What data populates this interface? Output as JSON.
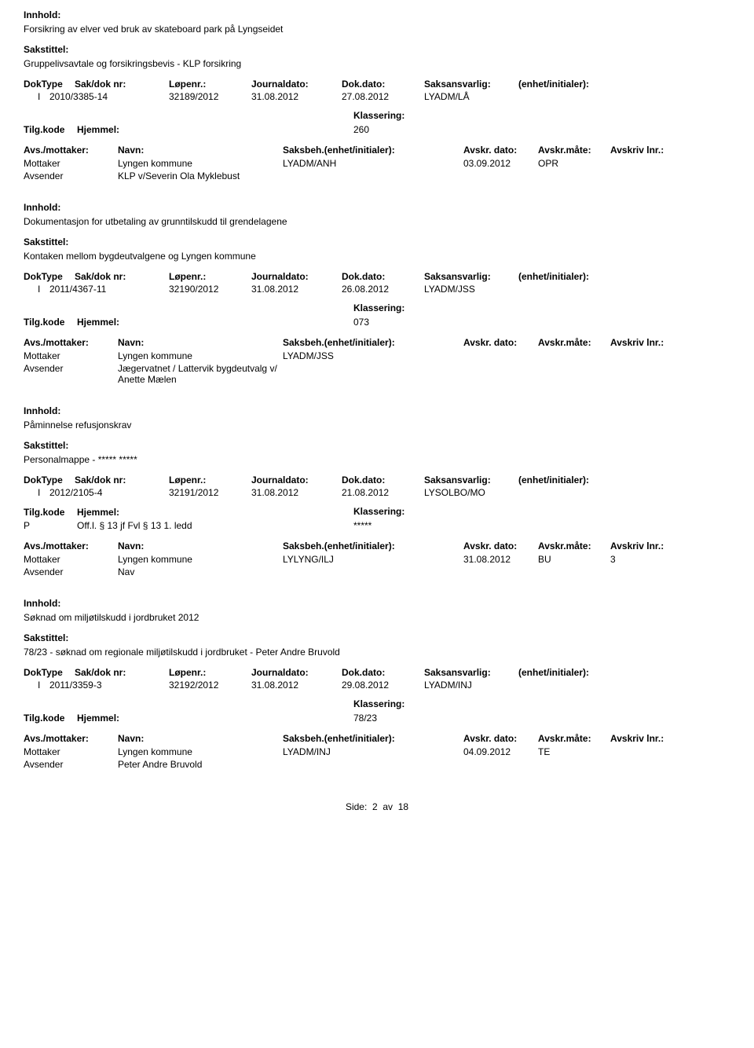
{
  "labels": {
    "innhold": "Innhold:",
    "sakstittel": "Sakstittel:",
    "doktype": "DokType",
    "sakdok": "Sak/dok nr:",
    "lopenr": "Løpenr.:",
    "journaldato": "Journaldato:",
    "dokdato": "Dok.dato:",
    "saksansvarlig": "Saksansvarlig:",
    "enhet": "(enhet/initialer):",
    "tilgkode": "Tilg.kode",
    "hjemmel": "Hjemmel:",
    "klassering": "Klassering:",
    "avsmottaker": "Avs./mottaker:",
    "navn": "Navn:",
    "saksbeh": "Saksbeh.(enhet/initialer):",
    "avskrdato": "Avskr. dato:",
    "avskrmate": "Avskr.måte:",
    "avskrivlnr": "Avskriv lnr.:"
  },
  "records": [
    {
      "innhold": "Forsikring av elver ved bruk av skateboard park på Lyngseidet",
      "sakstittel": "Gruppelivsavtale og forsikringsbevis - KLP forsikring",
      "doktype": "I",
      "sakdok": "2010/3385-14",
      "lopenr": "32189/2012",
      "jdato": "31.08.2012",
      "ddato": "27.08.2012",
      "saksa": "LYADM/LÅ",
      "tilg": "",
      "hjemmel": "",
      "klassering": "260",
      "parties": [
        {
          "role": "Mottaker",
          "navn": "Lyngen kommune",
          "saksb": "LYADM/ANH",
          "adato": "03.09.2012",
          "amate": "OPR",
          "lnr": ""
        },
        {
          "role": "Avsender",
          "navn": "KLP v/Severin Ola Myklebust",
          "saksb": "",
          "adato": "",
          "amate": "",
          "lnr": ""
        }
      ]
    },
    {
      "innhold": "Dokumentasjon for utbetaling av grunntilskudd til grendelagene",
      "sakstittel": "Kontaken mellom bygdeutvalgene og Lyngen kommune",
      "doktype": "I",
      "sakdok": "2011/4367-11",
      "lopenr": "32190/2012",
      "jdato": "31.08.2012",
      "ddato": "26.08.2012",
      "saksa": "LYADM/JSS",
      "tilg": "",
      "hjemmel": "",
      "klassering": "073",
      "parties": [
        {
          "role": "Mottaker",
          "navn": "Lyngen kommune",
          "saksb": "LYADM/JSS",
          "adato": "",
          "amate": "",
          "lnr": ""
        },
        {
          "role": "Avsender",
          "navn": "Jægervatnet / Lattervik bygdeutvalg v/ Anette Mælen",
          "saksb": "",
          "adato": "",
          "amate": "",
          "lnr": ""
        }
      ]
    },
    {
      "innhold": "Påminnelse refusjonskrav",
      "sakstittel": "Personalmappe - ***** *****",
      "doktype": "I",
      "sakdok": "2012/2105-4",
      "lopenr": "32191/2012",
      "jdato": "31.08.2012",
      "ddato": "21.08.2012",
      "saksa": "LYSOLBO/MO",
      "tilg": "P",
      "hjemmel": "Off.l. § 13 jf Fvl § 13 1. ledd",
      "klassering": "*****",
      "parties": [
        {
          "role": "Mottaker",
          "navn": "Lyngen kommune",
          "saksb": "LYLYNG/ILJ",
          "adato": "31.08.2012",
          "amate": "BU",
          "lnr": "3"
        },
        {
          "role": "Avsender",
          "navn": "Nav",
          "saksb": "",
          "adato": "",
          "amate": "",
          "lnr": ""
        }
      ]
    },
    {
      "innhold": "Søknad om miljøtilskudd i jordbruket 2012",
      "sakstittel": "78/23 - søknad om regionale miljøtilskudd i jordbruket - Peter Andre Bruvold",
      "doktype": "I",
      "sakdok": "2011/3359-3",
      "lopenr": "32192/2012",
      "jdato": "31.08.2012",
      "ddato": "29.08.2012",
      "saksa": "LYADM/INJ",
      "tilg": "",
      "hjemmel": "",
      "klassering": "78/23",
      "parties": [
        {
          "role": "Mottaker",
          "navn": "Lyngen kommune",
          "saksb": "LYADM/INJ",
          "adato": "04.09.2012",
          "amate": "TE",
          "lnr": ""
        },
        {
          "role": "Avsender",
          "navn": "Peter Andre Bruvold",
          "saksb": "",
          "adato": "",
          "amate": "",
          "lnr": ""
        }
      ]
    }
  ],
  "footer": {
    "side": "Side:",
    "page": "2",
    "av": "av",
    "total": "18"
  }
}
